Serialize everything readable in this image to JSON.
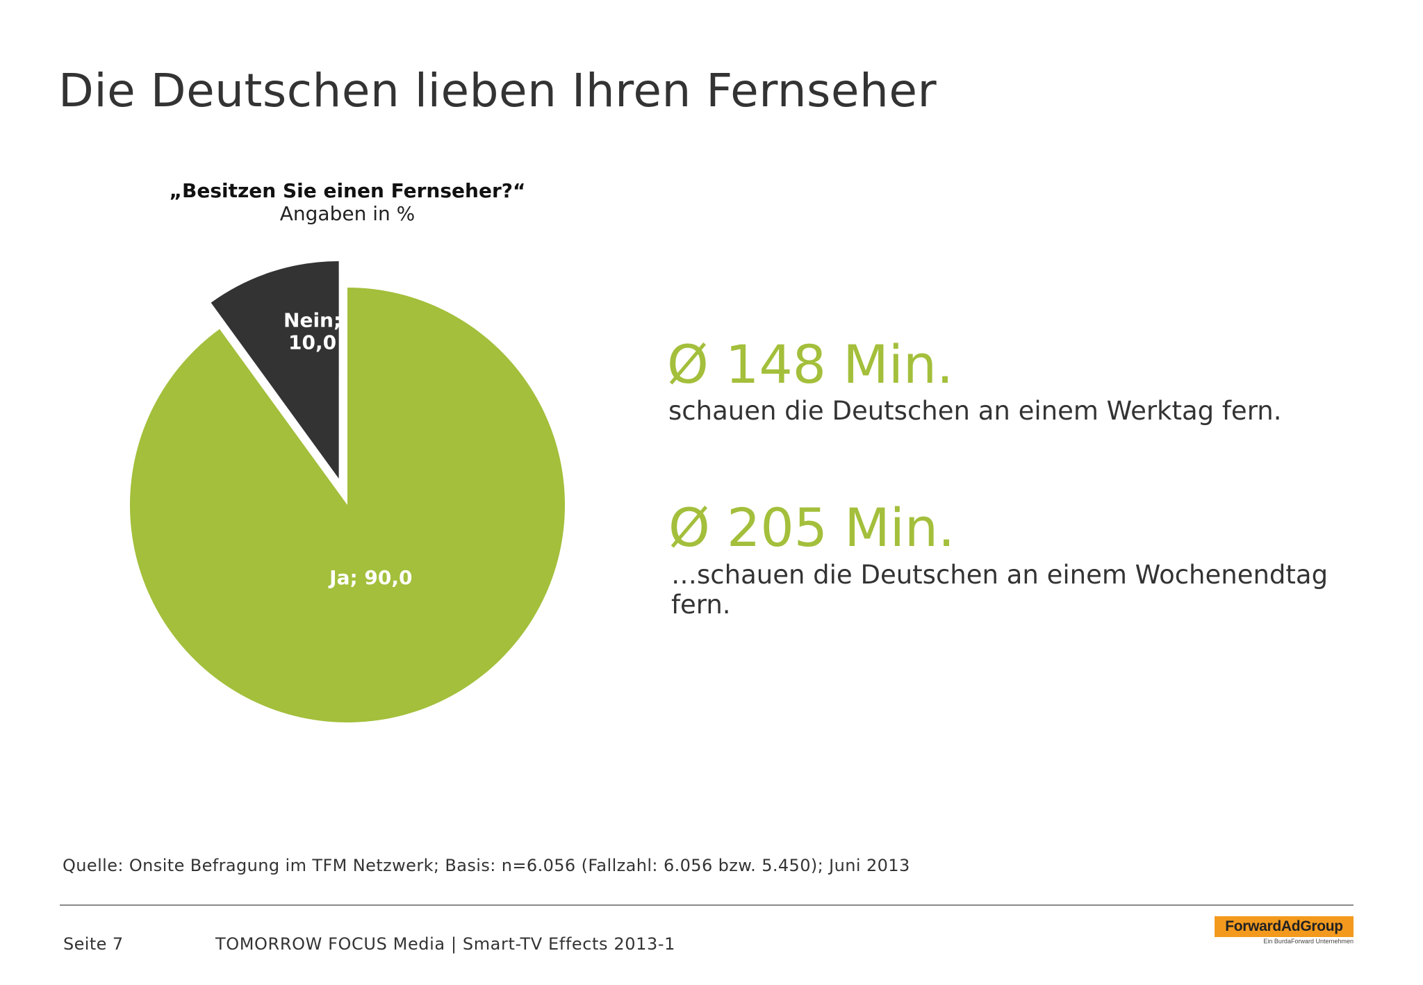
{
  "slide": {
    "title": "Die Deutschen lieben Ihren Fernseher"
  },
  "chart_data": {
    "type": "pie",
    "title": "„Besitzen Sie einen Fernseher?“",
    "subtitle": "Angaben in %",
    "slices": [
      {
        "label": "Ja",
        "value": 90.0,
        "display": "Ja; 90,0",
        "color": "#a3bf3b",
        "exploded": false
      },
      {
        "label": "Nein",
        "value": 10.0,
        "display_line1": "Nein;",
        "display_line2": "10,0",
        "color": "#333333",
        "exploded": true
      }
    ],
    "start_angle": "12 o'clock, clockwise"
  },
  "stats": [
    {
      "value": "Ø 148 Min.",
      "text": "schauen die Deutschen an einem Werktag fern."
    },
    {
      "value": "Ø 205 Min.",
      "text": "…schauen die Deutschen an einem Wochenendtag fern."
    }
  ],
  "source": "Quelle: Onsite Befragung im TFM Netzwerk; Basis: n=6.056 (Fallzahl: 6.056 bzw. 5.450); Juni 2013",
  "footer": {
    "page": "Seite 7",
    "text": "TOMORROW FOCUS Media  |  Smart-TV Effects 2013-1"
  },
  "logo": {
    "name": "ForwardAdGroup",
    "tagline": "Ein BurdaForward Unternehmen"
  },
  "colors": {
    "accent_green": "#a3bf3b",
    "dark": "#333333"
  }
}
